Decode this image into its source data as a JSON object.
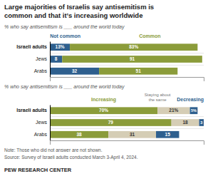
{
  "chart_data": [
    {
      "type": "bar",
      "orientation": "horizontal",
      "stacked": true,
      "data_labels": true,
      "title": "Large majorities of Israelis say antisemitism is\ncommon and that it’s increasing worldwide",
      "subtitle": "% who say antisemitism is ___ around the world today",
      "categories": [
        "Israeli adults",
        "Jews",
        "Arabs"
      ],
      "series": [
        {
          "name": "Not common",
          "color": "#2e5f8e",
          "values": [
            13,
            8,
            32
          ],
          "value_labels": [
            "13%",
            "8",
            "32"
          ]
        },
        {
          "name": "Common",
          "color": "#8b9c3a",
          "values": [
            83,
            91,
            51
          ],
          "value_labels": [
            "83%",
            "91",
            "51"
          ]
        }
      ],
      "xlim": [
        0,
        100
      ],
      "grid": false,
      "legend": "top",
      "tick_labels": "y"
    },
    {
      "type": "bar",
      "orientation": "horizontal",
      "stacked": true,
      "data_labels": true,
      "subtitle": "% who say antisemitism is ___ around the world today",
      "categories": [
        "Israeli adults",
        "Jews",
        "Arabs"
      ],
      "series": [
        {
          "name": "Increasing",
          "color": "#8b9c3a",
          "values": [
            70,
            79,
            38
          ],
          "value_labels": [
            "70%",
            "79",
            "38"
          ]
        },
        {
          "name": "Staying about\nthe same",
          "color": "#d5cdb5",
          "values": [
            21,
            18,
            31
          ],
          "value_labels": [
            "21%",
            "18",
            "31"
          ]
        },
        {
          "name": "Decreasing",
          "color": "#2e5f8e",
          "values": [
            5,
            3,
            15
          ],
          "value_labels": [
            "5%",
            "3",
            "15"
          ]
        }
      ],
      "xlim": [
        0,
        100
      ],
      "grid": false,
      "legend": "top",
      "tick_labels": "y",
      "annotations": [
        "Note: Those who did not answer are not shown.",
        "Source: Survey of Israeli adults conducted March 3-April 4, 2024.",
        "PEW RESEARCH CENTER"
      ]
    }
  ]
}
